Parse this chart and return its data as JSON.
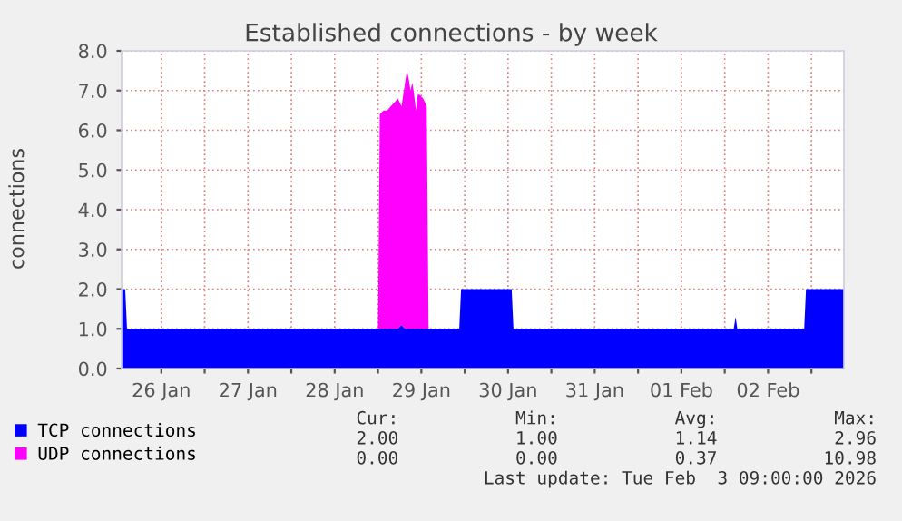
{
  "chart_data": {
    "type": "area",
    "stacked": true,
    "title": "Established connections - by week",
    "ylabel": "connections",
    "x": [
      "2026-01-26T01:00",
      "2026-01-26T02:00",
      "2026-01-26T02:30",
      "2026-01-29T00:00",
      "2026-01-29T00:30",
      "2026-01-29T01:30",
      "2026-01-29T02:30",
      "2026-01-29T03:30",
      "2026-01-29T04:30",
      "2026-01-29T05:30",
      "2026-01-29T06:30",
      "2026-01-29T07:30",
      "2026-01-29T08:00",
      "2026-01-29T08:30",
      "2026-01-29T09:00",
      "2026-01-29T09:30",
      "2026-01-29T10:00",
      "2026-01-29T10:30",
      "2026-01-29T11:00",
      "2026-01-29T11:30",
      "2026-01-29T12:30",
      "2026-01-29T13:30",
      "2026-01-29T14:00",
      "2026-01-29T22:30",
      "2026-01-29T23:00",
      "2026-01-30T13:00",
      "2026-01-30T13:30",
      "2026-02-02T02:30",
      "2026-02-02T03:00",
      "2026-02-02T03:30",
      "2026-02-02T22:00",
      "2026-02-02T22:30",
      "2026-02-03T09:00"
    ],
    "series": [
      {
        "name": "TCP connections",
        "color": "#0000ff",
        "values": [
          2,
          2,
          1,
          1,
          1,
          1,
          1,
          1,
          1,
          1,
          1.1,
          1,
          1,
          1,
          1,
          1,
          1,
          1,
          1,
          1,
          1,
          1,
          1,
          1,
          2,
          2,
          1,
          1,
          1.3,
          1,
          1,
          2,
          2
        ]
      },
      {
        "name": "UDP connections",
        "color": "#ff00ff",
        "values": [
          0,
          0,
          0,
          0,
          5.4,
          5.5,
          5.5,
          5.6,
          5.7,
          5.8,
          5.5,
          6.2,
          6.5,
          6.3,
          6.0,
          6.2,
          5.9,
          5.5,
          5.9,
          5.9,
          5.8,
          5.6,
          0,
          0,
          0,
          0,
          0,
          0,
          0,
          0,
          0,
          0,
          0
        ]
      }
    ],
    "xlim": [
      "2026-01-26T01:00",
      "2026-02-03T09:00"
    ],
    "xticks": [
      {
        "value": "2026-01-26T12:00",
        "label": "26 Jan"
      },
      {
        "value": "2026-01-27T00:00",
        "label": null
      },
      {
        "value": "2026-01-27T12:00",
        "label": "27 Jan"
      },
      {
        "value": "2026-01-28T00:00",
        "label": null
      },
      {
        "value": "2026-01-28T12:00",
        "label": "28 Jan"
      },
      {
        "value": "2026-01-29T00:00",
        "label": null
      },
      {
        "value": "2026-01-29T12:00",
        "label": "29 Jan"
      },
      {
        "value": "2026-01-30T00:00",
        "label": null
      },
      {
        "value": "2026-01-30T12:00",
        "label": "30 Jan"
      },
      {
        "value": "2026-01-31T00:00",
        "label": null
      },
      {
        "value": "2026-01-31T12:00",
        "label": "31 Jan"
      },
      {
        "value": "2026-02-01T00:00",
        "label": null
      },
      {
        "value": "2026-02-01T12:00",
        "label": "01 Feb"
      },
      {
        "value": "2026-02-02T00:00",
        "label": null
      },
      {
        "value": "2026-02-02T12:00",
        "label": "02 Feb"
      },
      {
        "value": "2026-02-03T00:00",
        "label": null
      }
    ],
    "ylim": [
      0,
      8
    ],
    "yticks": [
      {
        "value": 0,
        "label": "0.0"
      },
      {
        "value": 1,
        "label": "1.0"
      },
      {
        "value": 2,
        "label": "2.0"
      },
      {
        "value": 3,
        "label": "3.0"
      },
      {
        "value": 4,
        "label": "4.0"
      },
      {
        "value": 5,
        "label": "5.0"
      },
      {
        "value": 6,
        "label": "6.0"
      },
      {
        "value": 7,
        "label": "7.0"
      },
      {
        "value": 8,
        "label": "8.0"
      }
    ],
    "grid": true,
    "legend": "bottom left",
    "annotations": [
      "           Cur:           Min:           Avg:           Max:",
      "           2.00           1.00           1.14           2.96",
      "           0.00           0.00           0.37          10.98",
      "Last update: Tue Feb  3 09:00:00 2026"
    ]
  }
}
